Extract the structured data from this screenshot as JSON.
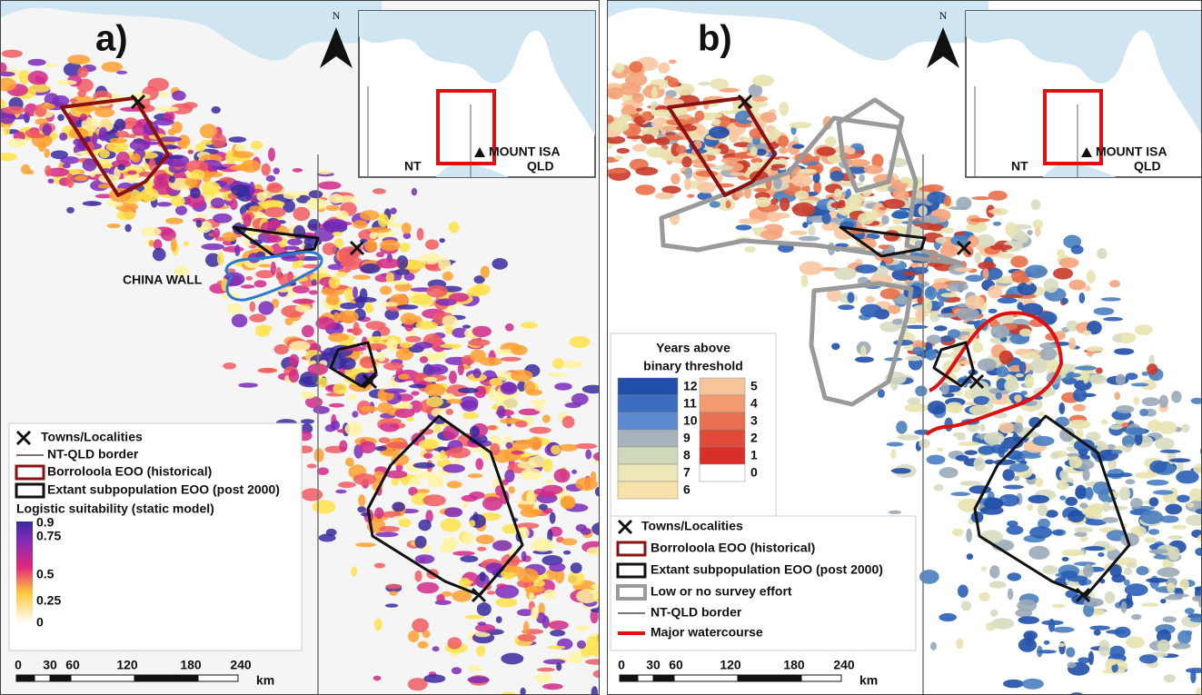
{
  "panels": [
    {
      "label": "a)",
      "north": "N",
      "inset": {
        "town": "MOUNT ISA",
        "left": "NT",
        "right": "QLD"
      },
      "annotation": "CHINA WALL",
      "legend": {
        "items": [
          "Towns/Localities",
          "NT-QLD border",
          "Borroloola EOO (historical)",
          "Extant subpopulation EOO (post 2000)"
        ],
        "colorbar": {
          "title": "Logistic suitability (static model)",
          "ticks": [
            "0.9",
            "0.75",
            "0.5",
            "0.25",
            "0"
          ]
        }
      },
      "scale": {
        "ticks": [
          "0",
          "30",
          "60",
          "120",
          "180",
          "240"
        ],
        "unit": "km"
      }
    },
    {
      "label": "b)",
      "north": "N",
      "inset": {
        "town": "MOUNT ISA",
        "left": "NT",
        "right": "QLD"
      },
      "classes": {
        "title": [
          "Years above",
          "binary threshold"
        ],
        "left": [
          "12",
          "11",
          "10",
          "9",
          "8",
          "7",
          "6"
        ],
        "right": [
          "5",
          "4",
          "3",
          "2",
          "1",
          "0"
        ]
      },
      "legend": {
        "items": [
          "Towns/Localities",
          "Borroloola EOO (historical)",
          "Extant subpopulation EOO (post 2000)",
          "Low or no survey effort",
          "NT-QLD border",
          "Major watercourse"
        ]
      },
      "scale": {
        "ticks": [
          "0",
          "30",
          "60",
          "120",
          "180",
          "240"
        ],
        "unit": "km"
      }
    }
  ]
}
